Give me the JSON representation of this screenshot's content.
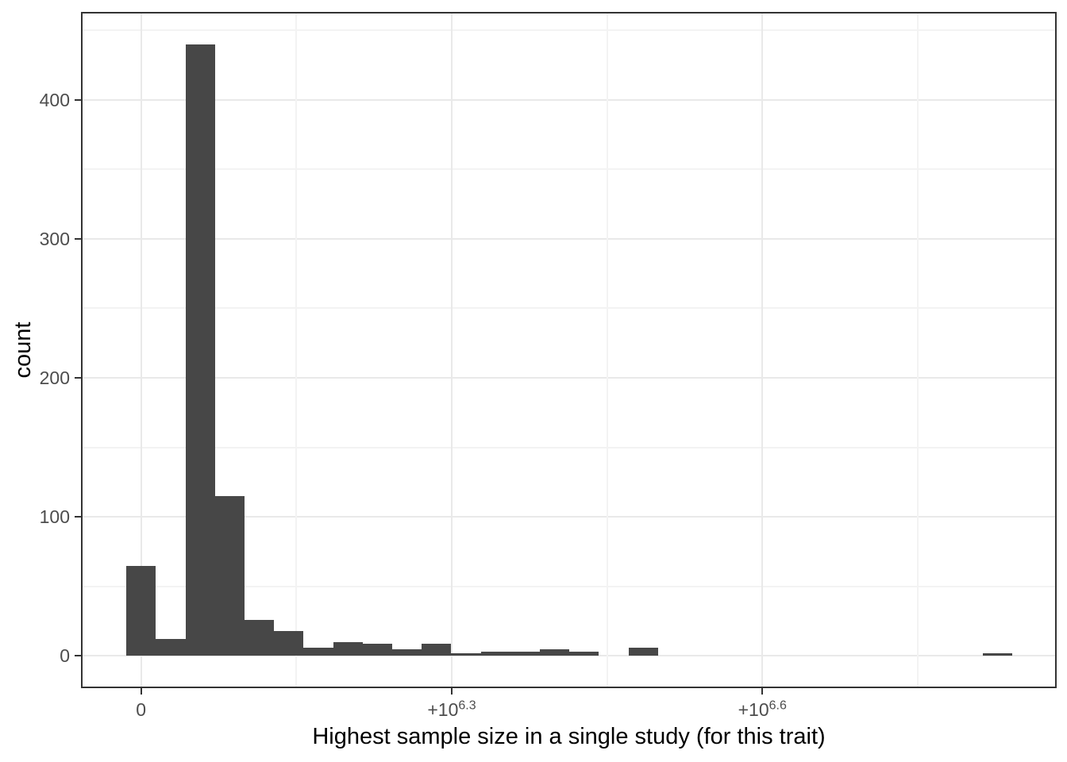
{
  "axes": {
    "x_title": "Highest sample size in a single study (for this trait)",
    "y_title": "count"
  },
  "colors": {
    "bar_fill": "#474747",
    "panel_border": "#333333",
    "grid_major": "#E9E9E9",
    "grid_minor": "#F3F3F3",
    "axis_text": "#4D4D4D",
    "axis_title": "#000000",
    "tick_mark": "#333333",
    "background": "#FFFFFF"
  },
  "chart_data": {
    "type": "bar",
    "subtype": "histogram",
    "title": "",
    "xlabel": "Highest sample size in a single study (for this trait)",
    "ylabel": "count",
    "x_scale": "pseudo-log10 of sample size; u=0 is 0, u=1 is 10^6.3 (~2.0e6), u=2 is 10^6.6 (~4.0e6)",
    "x_ticks": [
      {
        "u": 0,
        "text": "0",
        "sup": ""
      },
      {
        "u": 1,
        "text": "+10",
        "sup": "6.3"
      },
      {
        "u": 2,
        "text": "+10",
        "sup": "6.6"
      }
    ],
    "x_minor_ticks_u": [
      0.5,
      1.5,
      2.5
    ],
    "xlim_u": [
      -0.1884,
      2.9424
    ],
    "y_ticks": [
      0,
      100,
      200,
      300,
      400
    ],
    "y_minor_ticks": [
      50,
      150,
      250,
      350,
      450
    ],
    "ylim": [
      -22,
      462
    ],
    "grid": "major and minor, light gray on white",
    "legend_position": "none",
    "bins": {
      "start_u": -0.0476,
      "width_u": 0.0951,
      "counts": [
        65,
        12,
        440,
        115,
        26,
        18,
        6,
        10,
        9,
        5,
        9,
        2,
        3,
        3,
        5,
        3,
        0,
        6,
        0,
        0,
        0,
        0,
        0,
        0,
        0,
        0,
        0,
        0,
        0,
        2
      ]
    }
  }
}
